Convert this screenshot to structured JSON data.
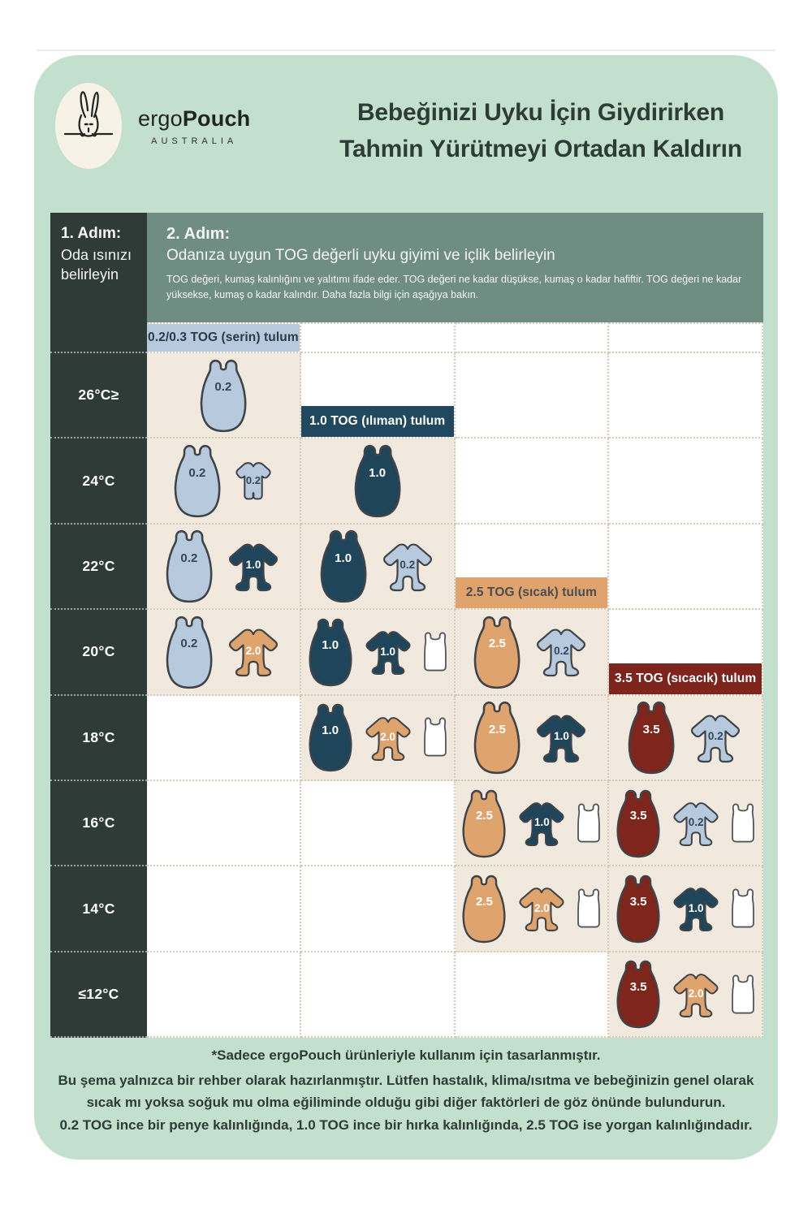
{
  "palette": {
    "panel": "#c3e0cf",
    "dark": "#2e3b36",
    "sage": "#708d83",
    "beige": "#f2e9de",
    "lightblue": "#b7cadd",
    "navy": "#1f455b",
    "tan": "#dfa46d",
    "red": "#7e251c",
    "number_dark": "#31485c",
    "number_light": "#ffffff",
    "dotted_line": "#d5cab8"
  },
  "header": {
    "brand_regular": "ergo",
    "brand_bold": "Pouch",
    "brand_subtitle": "AUSTRALIA",
    "title_line1": "Bebeğinizi Uyku İçin Giydirirken",
    "title_line2": "Tahmin Yürütmeyi Ortadan Kaldırın"
  },
  "table": {
    "step1": {
      "title": "1. Adım:",
      "subtitle": "Oda ısınızı belirleyin"
    },
    "step2": {
      "title": "2. Adım:",
      "subtitle": "Odanıza uygun TOG değerli uyku giyimi ve içlik belirleyin",
      "description": "TOG değeri, kumaş kalınlığını ve yalıtımı ifade eder. TOG değeri ne kadar düşükse, kumaş o kadar hafiftir. TOG değeri ne kadar yüksekse, kumaş o kadar kalındır. Daha fazla bilgi için aşağıya bakın."
    },
    "columns": [
      {
        "id": "tog-02",
        "label": "0.2/0.3 TOG (serin) tulum",
        "band_bg": "#b7cadd",
        "band_text": "#2c3a46",
        "band_row": -1
      },
      {
        "id": "tog-10",
        "label": "1.0 TOG (ılıman) tulum",
        "band_bg": "#20485f",
        "band_text": "#ffffff",
        "band_row": 0
      },
      {
        "id": "tog-25",
        "label": "2.5 TOG (sıcak) tulum",
        "band_bg": "#dfa36b",
        "band_text": "#474d57",
        "band_row": 2
      },
      {
        "id": "tog-35",
        "label": "3.5 TOG (sıcacık) tulum",
        "band_bg": "#7d241d",
        "band_text": "#ffffff",
        "band_row": 3
      }
    ],
    "rows": [
      {
        "key": "26c",
        "temp": "26°C≥",
        "cells": [
          [
            {
              "icon": "sleep-bag",
              "color": "lightblue",
              "tog": "0.2"
            }
          ],
          [],
          [],
          []
        ]
      },
      {
        "key": "24c",
        "temp": "24°C",
        "cells": [
          [
            {
              "icon": "sleep-bag",
              "color": "lightblue",
              "tog": "0.2"
            },
            {
              "icon": "short-romper",
              "color": "lightblue",
              "tog": "0.2"
            }
          ],
          [
            {
              "icon": "sleep-bag",
              "color": "navy",
              "tog": "1.0"
            }
          ],
          [],
          []
        ]
      },
      {
        "key": "22c",
        "temp": "22°C",
        "cells": [
          [
            {
              "icon": "sleep-bag",
              "color": "lightblue",
              "tog": "0.2"
            },
            {
              "icon": "romper",
              "color": "navy",
              "tog": "1.0"
            }
          ],
          [
            {
              "icon": "sleep-bag",
              "color": "navy",
              "tog": "1.0"
            },
            {
              "icon": "romper",
              "color": "lightblue",
              "tog": "0.2"
            }
          ],
          [],
          []
        ]
      },
      {
        "key": "20c",
        "temp": "20°C",
        "cells": [
          [
            {
              "icon": "sleep-bag",
              "color": "lightblue",
              "tog": "0.2"
            },
            {
              "icon": "romper",
              "color": "tan",
              "tog": "2.0"
            }
          ],
          [
            {
              "icon": "sleep-bag",
              "color": "navy",
              "tog": "1.0"
            },
            {
              "icon": "romper",
              "color": "navy",
              "tog": "1.0"
            },
            {
              "icon": "singlet",
              "color": "white",
              "tog": null
            }
          ],
          [
            {
              "icon": "sleep-bag",
              "color": "tan",
              "tog": "2.5"
            },
            {
              "icon": "romper",
              "color": "lightblue",
              "tog": "0.2"
            }
          ],
          []
        ]
      },
      {
        "key": "18c",
        "temp": "18°C",
        "cells": [
          [],
          [
            {
              "icon": "sleep-bag",
              "color": "navy",
              "tog": "1.0"
            },
            {
              "icon": "romper",
              "color": "tan",
              "tog": "2.0"
            },
            {
              "icon": "singlet",
              "color": "white",
              "tog": null
            }
          ],
          [
            {
              "icon": "sleep-bag",
              "color": "tan",
              "tog": "2.5"
            },
            {
              "icon": "romper",
              "color": "navy",
              "tog": "1.0"
            }
          ],
          [
            {
              "icon": "sleep-bag",
              "color": "red",
              "tog": "3.5"
            },
            {
              "icon": "romper",
              "color": "lightblue",
              "tog": "0.2"
            }
          ]
        ]
      },
      {
        "key": "16c",
        "temp": "16°C",
        "cells": [
          [],
          [],
          [
            {
              "icon": "sleep-bag",
              "color": "tan",
              "tog": "2.5"
            },
            {
              "icon": "romper",
              "color": "navy",
              "tog": "1.0"
            },
            {
              "icon": "singlet",
              "color": "white",
              "tog": null
            }
          ],
          [
            {
              "icon": "sleep-bag",
              "color": "red",
              "tog": "3.5"
            },
            {
              "icon": "romper",
              "color": "lightblue",
              "tog": "0.2"
            },
            {
              "icon": "singlet",
              "color": "white",
              "tog": null
            }
          ]
        ]
      },
      {
        "key": "14c",
        "temp": "14°C",
        "cells": [
          [],
          [],
          [
            {
              "icon": "sleep-bag",
              "color": "tan",
              "tog": "2.5"
            },
            {
              "icon": "romper",
              "color": "tan",
              "tog": "2.0"
            },
            {
              "icon": "singlet",
              "color": "white",
              "tog": null
            }
          ],
          [
            {
              "icon": "sleep-bag",
              "color": "red",
              "tog": "3.5"
            },
            {
              "icon": "romper",
              "color": "navy",
              "tog": "1.0"
            },
            {
              "icon": "singlet",
              "color": "white",
              "tog": null
            }
          ]
        ]
      },
      {
        "key": "12c",
        "temp": "≤12°C",
        "cells": [
          [],
          [],
          [],
          [
            {
              "icon": "sleep-bag",
              "color": "red",
              "tog": "3.5"
            },
            {
              "icon": "romper",
              "color": "tan",
              "tog": "2.0"
            },
            {
              "icon": "singlet",
              "color": "white",
              "tog": null
            }
          ]
        ]
      }
    ]
  },
  "footnote": {
    "line1": "*Sadece ergoPouch ürünleriyle kullanım için tasarlanmıştır.",
    "line2": "Bu şema yalnızca bir rehber olarak hazırlanmıştır. Lütfen hastalık, klima/ısıtma ve bebeğinizin genel olarak sıcak mı yoksa soğuk mu olma eğiliminde olduğu gibi diğer faktörleri de göz önünde bulundurun.",
    "line3": "0.2 TOG ince bir penye kalınlığında, 1.0 TOG ince bir hırka kalınlığında, 2.5 TOG ise yorgan kalınlığındadır."
  }
}
